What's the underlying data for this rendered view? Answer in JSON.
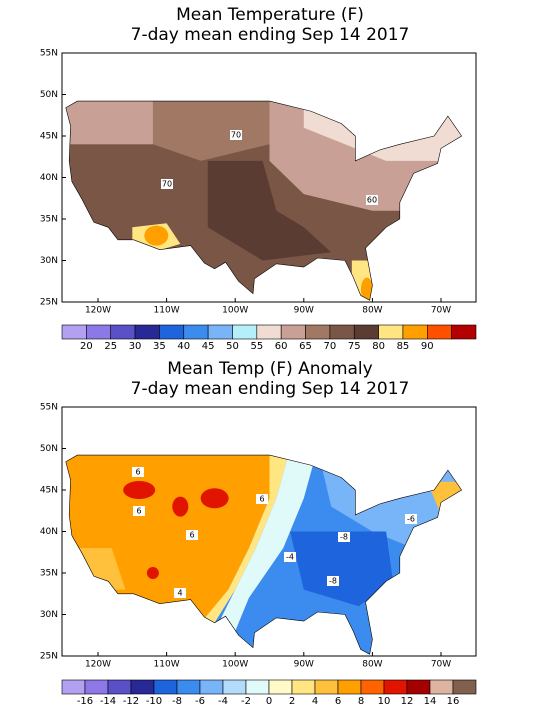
{
  "panels": [
    {
      "title": [
        "Mean Temperature (F)",
        "7-day mean ending Sep 14 2017"
      ],
      "lat_labels": [
        "55N",
        "50N",
        "45N",
        "40N",
        "35N",
        "30N",
        "25N"
      ],
      "lon_labels": [
        "120W",
        "110W",
        "100W",
        "90W",
        "80W",
        "70W"
      ],
      "colorbar": {
        "colors": [
          "#b4a0f0",
          "#8c78e6",
          "#5a50c8",
          "#282896",
          "#1e64dc",
          "#3c8cf0",
          "#78b4f8",
          "#b4f0fa",
          "#f0dcd2",
          "#c8a096",
          "#a07864",
          "#7a5646",
          "#5a3c32",
          "#ffe682",
          "#ffa000",
          "#ff5000",
          "#b40000"
        ],
        "labels": [
          "20",
          "25",
          "30",
          "35",
          "40",
          "45",
          "50",
          "55",
          "60",
          "65",
          "70",
          "75",
          "80",
          "85",
          "90"
        ]
      },
      "contour_labels": [
        "70",
        "70",
        "60"
      ]
    },
    {
      "title": [
        "Mean Temp (F) Anomaly",
        "7-day mean ending Sep 14 2017"
      ],
      "lat_labels": [
        "55N",
        "50N",
        "45N",
        "40N",
        "35N",
        "30N",
        "25N"
      ],
      "lon_labels": [
        "120W",
        "110W",
        "100W",
        "90W",
        "80W",
        "70W"
      ],
      "colorbar": {
        "colors": [
          "#b4a0f0",
          "#8c78e6",
          "#5a50c8",
          "#282896",
          "#1e64dc",
          "#3c8cf0",
          "#78b4f8",
          "#b4dcfa",
          "#e0fafa",
          "#fffac8",
          "#ffe682",
          "#ffc03c",
          "#ffa000",
          "#ff6400",
          "#e11400",
          "#a50000",
          "#dcb4a0",
          "#826050"
        ],
        "labels": [
          "-16",
          "-14",
          "-12",
          "-10",
          "-8",
          "-6",
          "-4",
          "-2",
          "0",
          "2",
          "4",
          "6",
          "8",
          "10",
          "12",
          "14",
          "16"
        ]
      },
      "contour_labels": [
        "6",
        "6",
        "6",
        "6",
        "4",
        "-4",
        "-8",
        "-8",
        "-6"
      ]
    }
  ]
}
